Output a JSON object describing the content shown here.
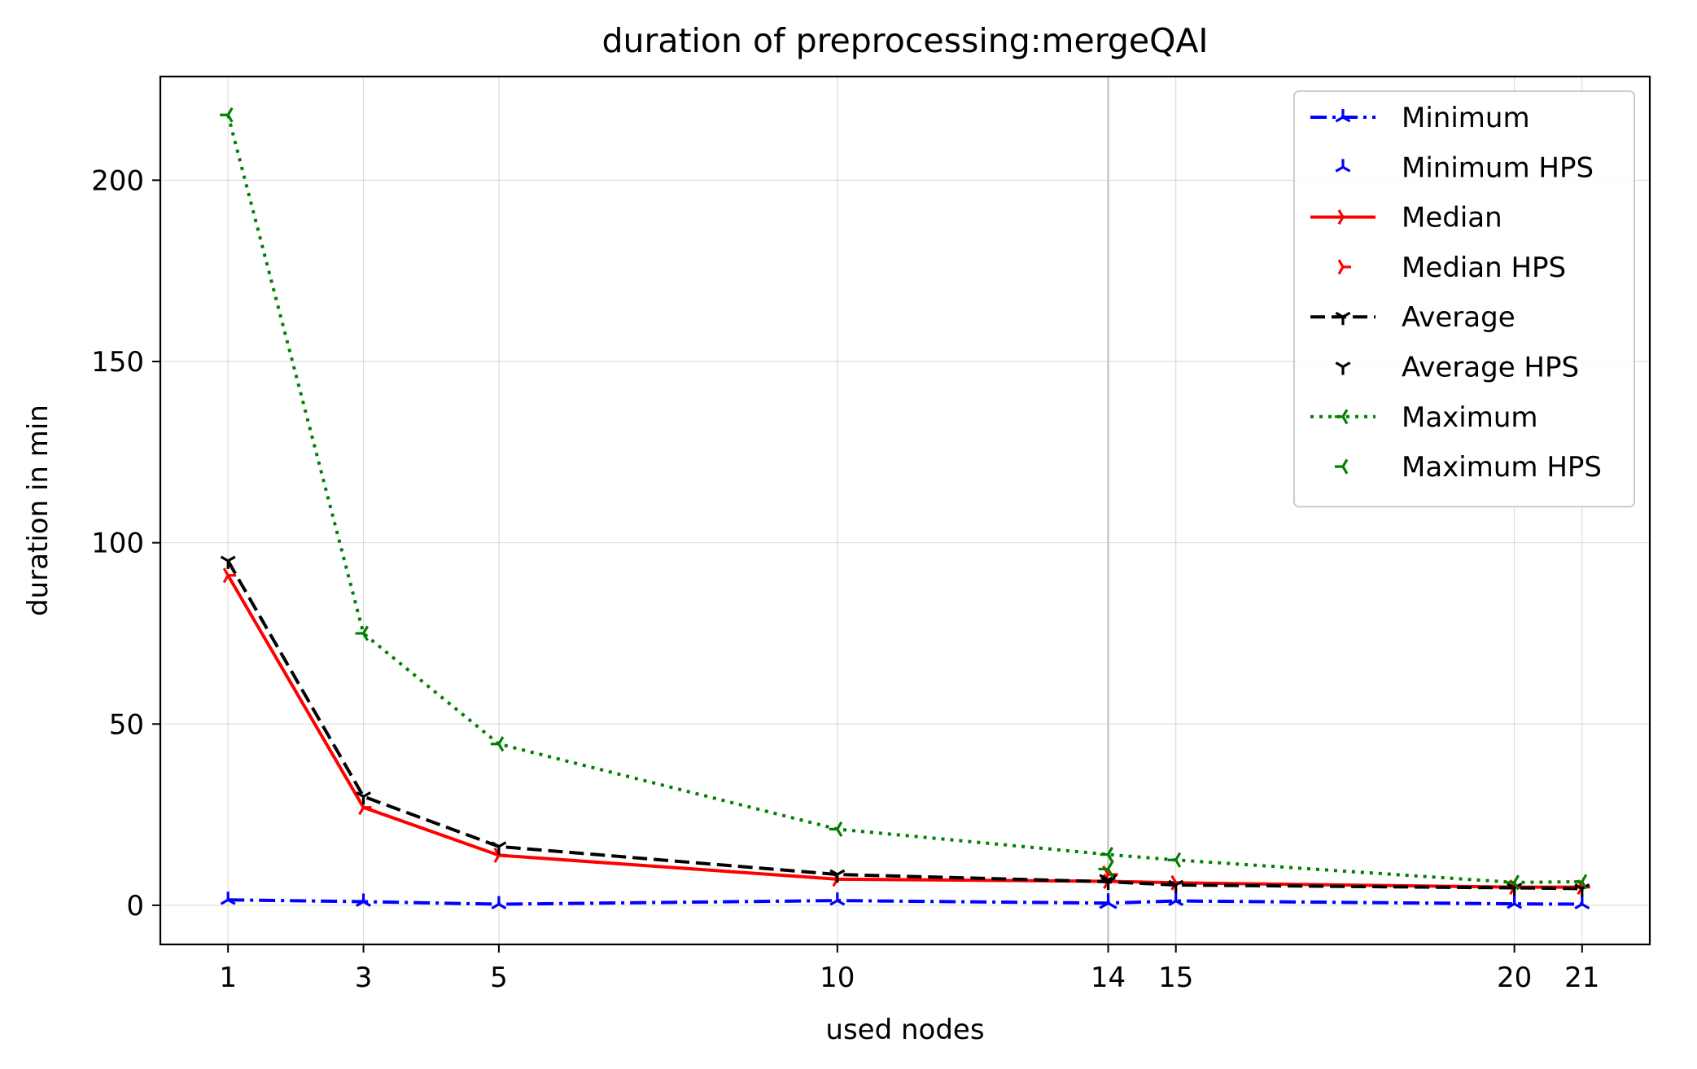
{
  "chart_data": {
    "type": "line",
    "title": "duration of preprocessing:mergeQAI",
    "xlabel": "used nodes",
    "ylabel": "duration in min",
    "x_ticks": [
      1,
      3,
      5,
      10,
      14,
      15,
      20,
      21
    ],
    "y_ticks": [
      0,
      50,
      100,
      150,
      200
    ],
    "xlim": [
      0,
      22
    ],
    "ylim": [
      -10.8,
      228.6
    ],
    "grid": true,
    "highlight_x": 14,
    "legend_position": "top-right",
    "series": [
      {
        "name": "Minimum",
        "color": "#0000ff",
        "linestyle": "dashdot",
        "marker": "tri_up",
        "x": [
          1,
          3,
          5,
          10,
          14,
          15,
          20,
          21
        ],
        "y": [
          1.5,
          1.0,
          0.3,
          1.3,
          0.6,
          1.2,
          0.4,
          0.3
        ]
      },
      {
        "name": "Minimum HPS",
        "color": "#0000ff",
        "marker": "tri_up",
        "x": [
          14
        ],
        "y": [
          0.6
        ]
      },
      {
        "name": "Median",
        "color": "#ff0000",
        "linestyle": "solid",
        "marker": "tri_right",
        "x": [
          1,
          3,
          5,
          10,
          14,
          15,
          20,
          21
        ],
        "y": [
          91,
          27,
          13.8,
          7.2,
          6.6,
          6.2,
          5.0,
          5.0
        ]
      },
      {
        "name": "Median HPS",
        "color": "#ff0000",
        "marker": "tri_right",
        "x": [
          14
        ],
        "y": [
          8.5
        ]
      },
      {
        "name": "Average",
        "color": "#000000",
        "linestyle": "dashed",
        "marker": "tri_down",
        "x": [
          1,
          3,
          5,
          10,
          14,
          15,
          20,
          21
        ],
        "y": [
          95,
          30,
          16.2,
          8.5,
          6.5,
          5.6,
          4.8,
          4.6
        ]
      },
      {
        "name": "Average HPS",
        "color": "#000000",
        "marker": "tri_down",
        "x": [
          14
        ],
        "y": [
          7.0
        ]
      },
      {
        "name": "Maximum",
        "color": "#008000",
        "linestyle": "dotted",
        "marker": "tri_left",
        "x": [
          1,
          3,
          5,
          10,
          14,
          15,
          20,
          21
        ],
        "y": [
          218,
          75,
          44.5,
          21,
          14,
          12.5,
          6.3,
          6.5
        ]
      },
      {
        "name": "Maximum HPS",
        "color": "#008000",
        "marker": "tri_left",
        "x": [
          14
        ],
        "y": [
          10.0
        ]
      }
    ]
  }
}
